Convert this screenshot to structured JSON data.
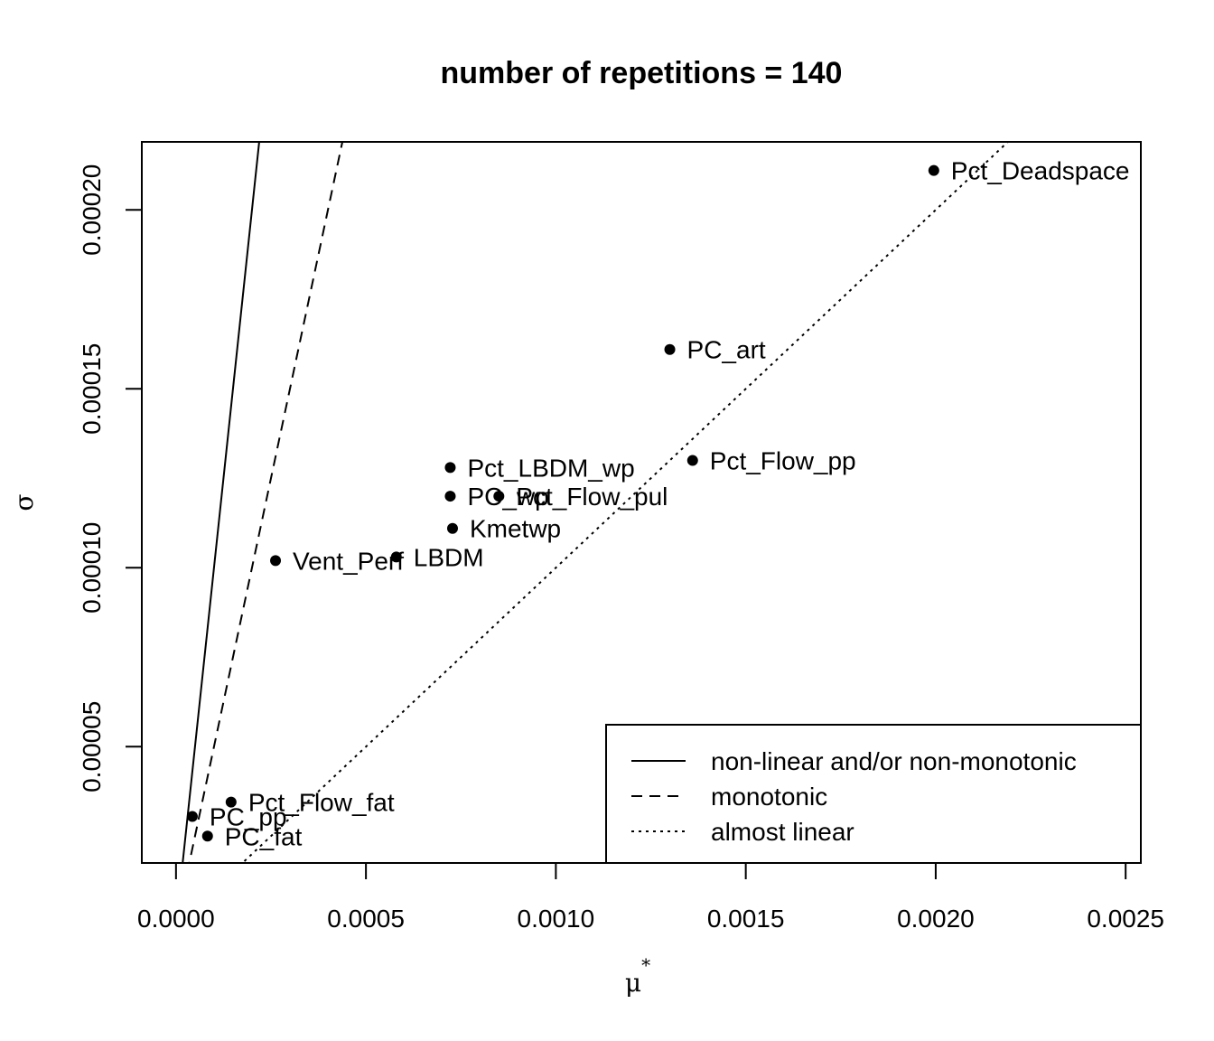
{
  "chart_data": {
    "type": "scatter",
    "title": "number of repetitions = 140",
    "xlabel": "μ",
    "xlabel_superscript": "*",
    "ylabel": "σ",
    "xlim": [
      -9e-05,
      0.00254
    ],
    "ylim": [
      1.75e-05,
      0.000219
    ],
    "x_ticks": [
      0.0,
      0.0005,
      0.001,
      0.0015,
      0.002,
      0.0025
    ],
    "x_tick_labels": [
      "0.0000",
      "0.0005",
      "0.0010",
      "0.0015",
      "0.0020",
      "0.0025"
    ],
    "y_ticks": [
      5e-05,
      0.0001,
      0.00015,
      0.0002
    ],
    "y_tick_labels": [
      "0.00005",
      "0.00010",
      "0.00015",
      "0.00020"
    ],
    "grid": false,
    "points": [
      {
        "label": "Pct_Deadspace",
        "x": 0.001995,
        "y": 0.000211
      },
      {
        "label": "PC_art",
        "x": 0.0013,
        "y": 0.000161
      },
      {
        "label": "Pct_Flow_pp",
        "x": 0.00136,
        "y": 0.00013
      },
      {
        "label": "Pct_LBDM_wp",
        "x": 0.000722,
        "y": 0.000128
      },
      {
        "label": "PC_wp",
        "x": 0.000722,
        "y": 0.00012
      },
      {
        "label": "Pct_Flow_pul",
        "x": 0.00085,
        "y": 0.00012
      },
      {
        "label": "Kmetwp",
        "x": 0.000728,
        "y": 0.000111
      },
      {
        "label": "Vent_Perf",
        "x": 0.000262,
        "y": 0.000102
      },
      {
        "label": "LBDM",
        "x": 0.00058,
        "y": 0.000103
      },
      {
        "label": "Pct_Flow_fat",
        "x": 0.000145,
        "y": 3.45e-05
      },
      {
        "label": "PC_pp",
        "x": 4.3e-05,
        "y": 3.05e-05
      },
      {
        "label": "PC_fat",
        "x": 8.3e-05,
        "y": 2.5e-05
      }
    ],
    "reference_lines": [
      {
        "name": "non-linear and/or non-monotonic",
        "style": "solid",
        "slope": 1.0
      },
      {
        "name": "monotonic",
        "style": "dashed",
        "slope": 0.5
      },
      {
        "name": "almost linear",
        "style": "dotted",
        "slope": 0.1
      }
    ],
    "legend_position": "bottom-right"
  }
}
